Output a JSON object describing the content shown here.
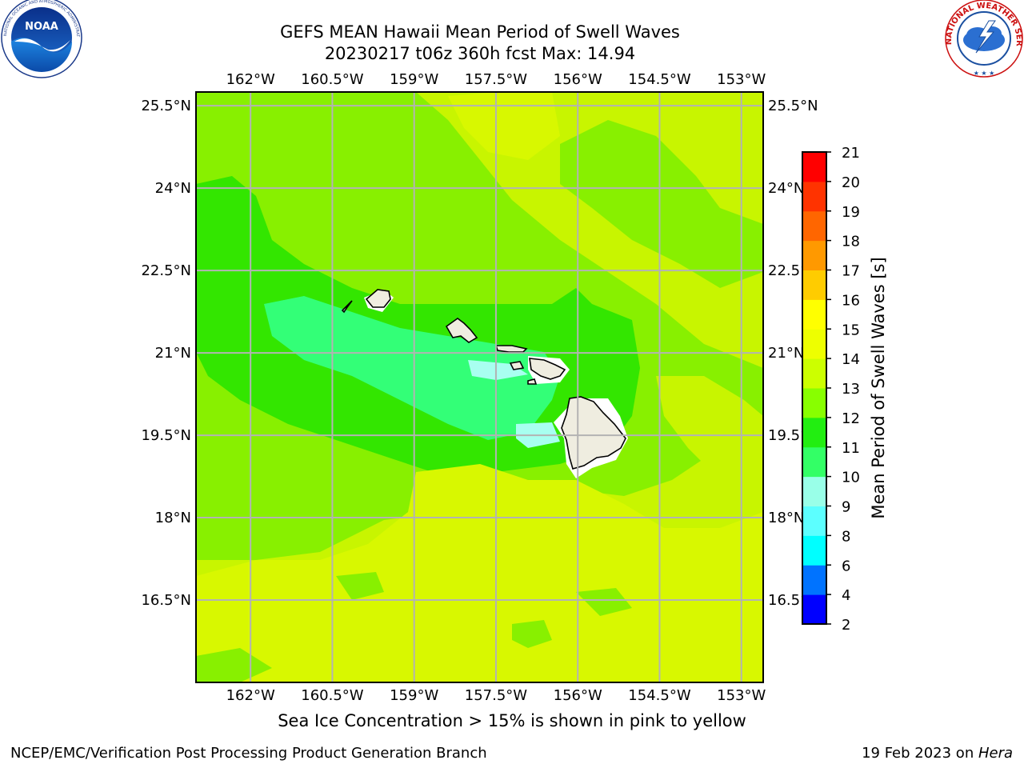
{
  "title": {
    "line1": "GEFS MEAN Hawaii Mean Period of Swell Waves",
    "line2": "20230217 t06z 360h fcst   Max: 14.94"
  },
  "axes": {
    "lon_ticks": [
      "162°W",
      "160.5°W",
      "159°W",
      "157.5°W",
      "156°W",
      "154.5°W",
      "153°W"
    ],
    "lon_values": [
      -162,
      -160.5,
      -159,
      -157.5,
      -156,
      -154.5,
      -153
    ],
    "lat_ticks": [
      "25.5°N",
      "24°N",
      "22.5°N",
      "21°N",
      "19.5°N",
      "18°N",
      "16.5°N"
    ],
    "lat_values": [
      25.5,
      24,
      22.5,
      21,
      19.5,
      18,
      16.5
    ],
    "lon_range": [
      -163.0,
      -152.6
    ],
    "lat_range": [
      15.0,
      25.75
    ],
    "grid": true
  },
  "colorbar": {
    "label": "Mean Period of Swell Waves [s]",
    "ticks": [
      "2",
      "4",
      "6",
      "8",
      "9",
      "10",
      "11",
      "12",
      "13",
      "14",
      "15",
      "16",
      "17",
      "18",
      "19",
      "20",
      "21"
    ],
    "colors": [
      "#0000ff",
      "#0073ff",
      "#00ffff",
      "#5cffff",
      "#99ffe8",
      "#33ff66",
      "#22ee11",
      "#88ff00",
      "#ccff00",
      "#eeff00",
      "#ffff00",
      "#ffcc00",
      "#ff9900",
      "#ff6600",
      "#ff3300",
      "#ff0000"
    ]
  },
  "footer": {
    "note": "Sea Ice Concentration > 15% is shown in pink to yellow",
    "left": "NCEP/EMC/Verification Post Processing Product Generation Branch",
    "right_date": "19 Feb 2023 on ",
    "right_host": "Hera"
  },
  "logos": {
    "left": "noaa-logo",
    "right": "nws-logo",
    "nws_text": "NATIONAL WEATHER SERVICE"
  }
}
